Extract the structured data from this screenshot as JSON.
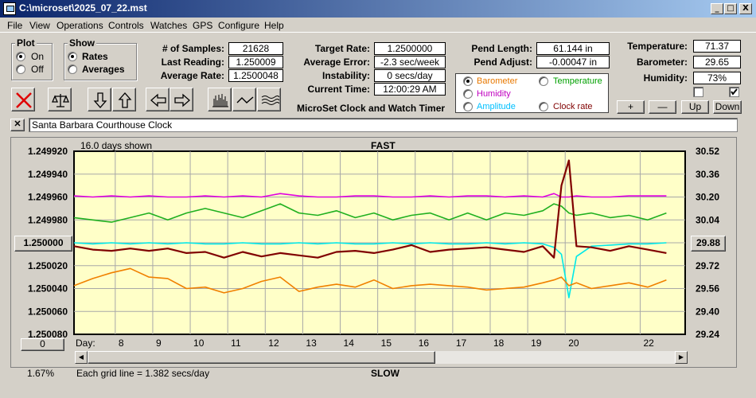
{
  "window": {
    "title": "C:\\microset\\2025_07_22.mst"
  },
  "caption_buttons": [
    "_",
    "□",
    "X"
  ],
  "menu": [
    "File",
    "View",
    "Operations",
    "Controls",
    "Watches",
    "GPS",
    "Configure",
    "Help"
  ],
  "plot_group": {
    "title": "Plot",
    "options": [
      {
        "label": "On",
        "selected": true
      },
      {
        "label": "Off",
        "selected": false
      }
    ]
  },
  "show_group": {
    "title": "Show",
    "options": [
      {
        "label": "Rates",
        "selected": true
      },
      {
        "label": "Averages",
        "selected": false
      }
    ]
  },
  "stats": {
    "samples_label": "# of Samples:",
    "samples": "21628",
    "last_label": "Last Reading:",
    "last": "1.250009",
    "avg_rate_label": "Average Rate:",
    "avg_rate": "1.2500048",
    "target_label": "Target Rate:",
    "target": "1.2500000",
    "avg_error_label": "Average Error:",
    "avg_error": "-2.3 sec/week",
    "instability_label": "Instability:",
    "instability": "0 secs/day",
    "current_time_label": "Current Time:",
    "current_time": "12:00:29 AM",
    "pend_length_label": "Pend Length:",
    "pend_length": "61.144 in",
    "pend_adjust_label": "Pend Adjust:",
    "pend_adjust": "-0.00047 in",
    "temperature_label": "Temperature:",
    "temperature": "71.37",
    "barometer_label": "Barometer:",
    "barometer": "29.65",
    "humidity_label": "Humidity:",
    "humidity": "73%"
  },
  "app_subtitle": "MicroSet Clock and Watch Timer",
  "secondary_plot": {
    "options": [
      {
        "label": "Barometer",
        "color": "#e87800",
        "selected": true
      },
      {
        "label": "Temperature",
        "color": "#00a000",
        "selected": false
      },
      {
        "label": "Humidity",
        "color": "#c000c0",
        "selected": false
      },
      {
        "label": "Clock rate",
        "color": "#800000",
        "selected": false
      },
      {
        "label": "Amplitude",
        "color": "#00c0ff",
        "selected": false
      }
    ]
  },
  "checkboxes": [
    {
      "checked": false
    },
    {
      "checked": true
    }
  ],
  "adjust_buttons": [
    "+",
    "—",
    "Up",
    "Down"
  ],
  "toolbar": [
    {
      "icon": "clear-x-icon"
    },
    {
      "icon": "scales-icon"
    },
    {
      "icon": "arrow-down-icon"
    },
    {
      "icon": "arrow-up-icon"
    },
    {
      "icon": "arrow-left-icon"
    },
    {
      "icon": "arrow-right-icon"
    },
    {
      "icon": "bars-icon"
    },
    {
      "icon": "wave-icon"
    },
    {
      "icon": "multiwave-icon"
    }
  ],
  "clock_name": "Santa Barbara Courthouse Clock",
  "plot": {
    "days_shown": "16.0 days shown",
    "fast_label": "FAST",
    "slow_label": "SLOW",
    "grid_note": "Each grid line = 1.382 secs/day",
    "percent": "1.67%",
    "left_button": "1.250000",
    "right_button": "29.88",
    "zero_button": "0",
    "day_label": "Day:"
  },
  "chart_data": {
    "type": "line",
    "title": "",
    "xlabel": "Day:",
    "x_ticks": [
      "8",
      "9",
      "10",
      "11",
      "12",
      "13",
      "14",
      "15",
      "16",
      "17",
      "18",
      "19",
      "20",
      "22"
    ],
    "y_left_ticks": [
      "1.249920",
      "1.249940",
      "1.249960",
      "1.249980",
      "1.250000",
      "1.250020",
      "1.250040",
      "1.250060",
      "1.250080"
    ],
    "y_right_ticks": [
      "30.52",
      "30.36",
      "30.20",
      "30.04",
      "29.88",
      "29.72",
      "29.56",
      "29.40",
      "29.24"
    ],
    "ylim_left": [
      1.24992,
      1.25008
    ],
    "ylim_right": [
      29.24,
      30.52
    ],
    "x_range": [
      6.9,
      23.2
    ],
    "x_sample_days": [
      6.9,
      7.4,
      7.9,
      8.4,
      8.9,
      9.4,
      9.9,
      10.4,
      10.9,
      11.4,
      11.9,
      12.4,
      12.9,
      13.4,
      13.9,
      14.4,
      14.9,
      15.4,
      15.9,
      16.4,
      16.9,
      17.4,
      17.9,
      18.4,
      18.9,
      19.4,
      19.7,
      19.9,
      20.1,
      20.3,
      20.7,
      21.2,
      21.7,
      22.2,
      22.7
    ],
    "series": [
      {
        "name": "Humidity",
        "color": "#e000e0",
        "values": [
          1.249959,
          1.24996,
          1.249959,
          1.24996,
          1.249959,
          1.24996,
          1.24996,
          1.249959,
          1.24996,
          1.249959,
          1.24996,
          1.249957,
          1.249959,
          1.24996,
          1.24996,
          1.249959,
          1.249959,
          1.24996,
          1.24996,
          1.249959,
          1.24996,
          1.249959,
          1.249959,
          1.24996,
          1.249959,
          1.24996,
          1.249957,
          1.24996,
          1.24996,
          1.249959,
          1.24996,
          1.24996,
          1.249959,
          1.249959,
          1.249959
        ]
      },
      {
        "name": "Temperature",
        "color": "#20b020",
        "values": [
          1.249978,
          1.24998,
          1.249982,
          1.249978,
          1.249974,
          1.24998,
          1.249974,
          1.24997,
          1.249974,
          1.249978,
          1.249972,
          1.249966,
          1.249974,
          1.249976,
          1.249972,
          1.249978,
          1.249974,
          1.24998,
          1.249976,
          1.249974,
          1.24998,
          1.249974,
          1.24998,
          1.249974,
          1.249976,
          1.249972,
          1.249966,
          1.249968,
          1.249974,
          1.249976,
          1.249974,
          1.249978,
          1.249976,
          1.24998,
          1.249974
        ]
      },
      {
        "name": "Amplitude",
        "color": "#00e8e8",
        "values": [
          1.25,
          1.250001,
          1.25,
          1.250001,
          1.25,
          1.250001,
          1.25,
          1.250001,
          1.250001,
          1.25,
          1.250001,
          1.250001,
          1.25,
          1.250001,
          1.25,
          1.250001,
          1.250001,
          1.25,
          1.250001,
          1.25,
          1.250001,
          1.250001,
          1.25,
          1.250001,
          1.25,
          1.250001,
          1.250004,
          1.25001,
          1.250048,
          1.250012,
          1.250003,
          1.250002,
          1.250001,
          1.250001,
          1.25
        ]
      },
      {
        "name": "Clock rate",
        "color": "#800000",
        "values": [
          1.250003,
          1.250006,
          1.250007,
          1.250005,
          1.250007,
          1.250005,
          1.250009,
          1.250008,
          1.250013,
          1.250008,
          1.250012,
          1.250009,
          1.250011,
          1.250013,
          1.250008,
          1.250007,
          1.250009,
          1.250006,
          1.250002,
          1.250008,
          1.250006,
          1.250005,
          1.250004,
          1.250006,
          1.250008,
          1.250003,
          1.250013,
          1.24995,
          1.249928,
          1.250003,
          1.250004,
          1.250007,
          1.250003,
          1.250006,
          1.250009
        ]
      },
      {
        "name": "Barometer",
        "color": "#f08000",
        "values": [
          29.58,
          29.63,
          29.67,
          29.7,
          29.64,
          29.63,
          29.56,
          29.57,
          29.53,
          29.56,
          29.61,
          29.64,
          29.54,
          29.57,
          29.59,
          29.57,
          29.62,
          29.56,
          29.58,
          29.59,
          29.58,
          29.57,
          29.55,
          29.56,
          29.57,
          29.6,
          29.62,
          29.64,
          29.58,
          29.6,
          29.56,
          29.58,
          29.6,
          29.57,
          29.62
        ]
      }
    ]
  }
}
